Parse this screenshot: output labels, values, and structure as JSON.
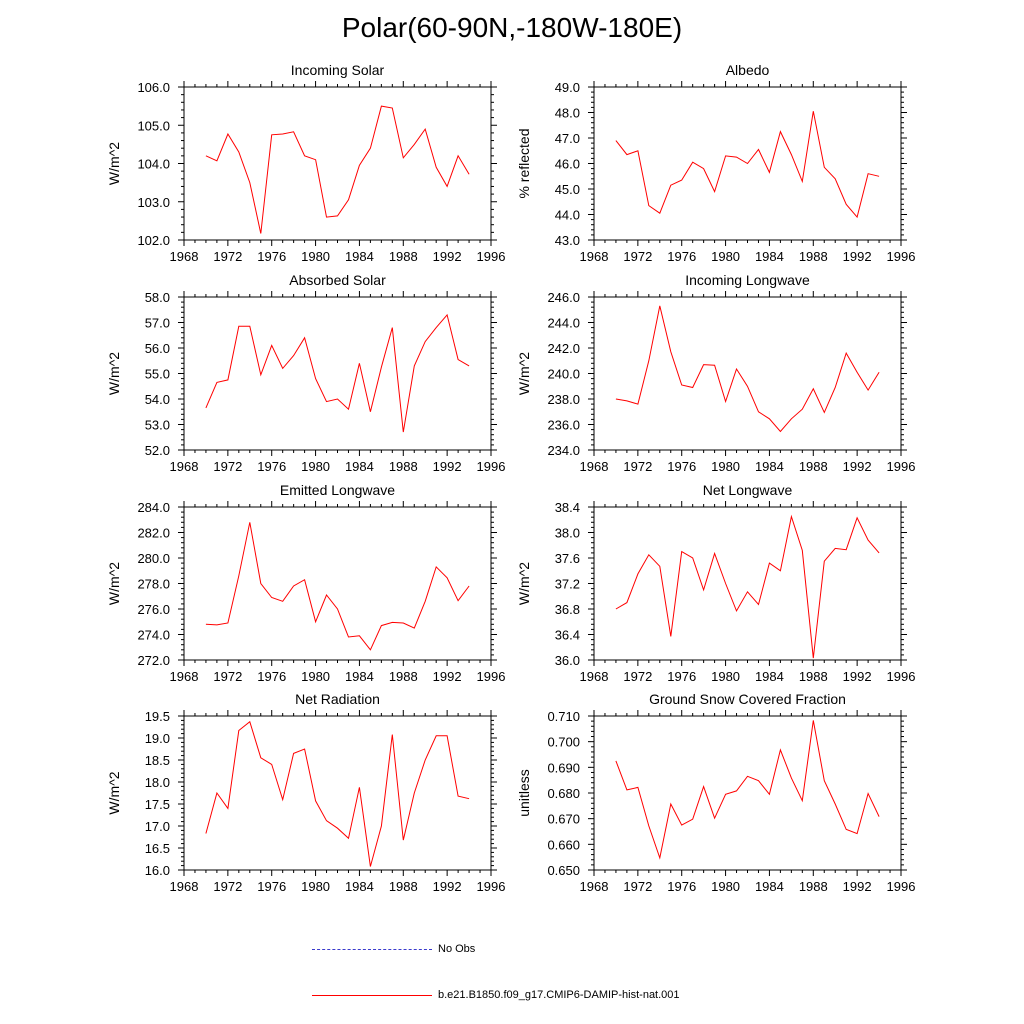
{
  "title": "Polar(60-90N,-180W-180E)",
  "legend": [
    {
      "label": "No Obs",
      "color": "#3a3acc",
      "style": "dashed"
    },
    {
      "label": "b.e21.B1850.f09_g17.CMIP6-DAMIP-hist-nat.001",
      "color": "#ff0000",
      "style": "solid"
    }
  ],
  "chart_data": [
    {
      "type": "line",
      "title": "Incoming Solar",
      "ylabel": "W/m^2",
      "xlim": [
        1968,
        1996
      ],
      "xticks": [
        1968,
        1972,
        1976,
        1980,
        1984,
        1988,
        1992,
        1996
      ],
      "ylim": [
        102.0,
        106.0
      ],
      "yticks": [
        "102.0",
        "103.0",
        "104.0",
        "105.0",
        "106.0"
      ],
      "series": [
        {
          "color": "#ff0000",
          "x": [
            1970,
            1971,
            1972,
            1973,
            1974,
            1975,
            1976,
            1977,
            1978,
            1979,
            1980,
            1981,
            1982,
            1983,
            1984,
            1985,
            1986,
            1987,
            1988,
            1989,
            1990,
            1991,
            1992,
            1993,
            1994
          ],
          "values": [
            104.2,
            104.07,
            104.77,
            104.3,
            103.5,
            102.17,
            104.75,
            104.77,
            104.83,
            104.2,
            104.1,
            102.6,
            102.63,
            103.05,
            103.95,
            104.4,
            105.5,
            105.45,
            104.15,
            104.5,
            104.9,
            103.9,
            103.4,
            104.2,
            103.72
          ]
        }
      ]
    },
    {
      "type": "line",
      "title": "Albedo",
      "ylabel": "% reflected",
      "xlim": [
        1968,
        1996
      ],
      "xticks": [
        1968,
        1972,
        1976,
        1980,
        1984,
        1988,
        1992,
        1996
      ],
      "ylim": [
        43.0,
        49.0
      ],
      "yticks": [
        "43.0",
        "44.0",
        "45.0",
        "46.0",
        "47.0",
        "48.0",
        "49.0"
      ],
      "series": [
        {
          "color": "#ff0000",
          "x": [
            1970,
            1971,
            1972,
            1973,
            1974,
            1975,
            1976,
            1977,
            1978,
            1979,
            1980,
            1981,
            1982,
            1983,
            1984,
            1985,
            1986,
            1987,
            1988,
            1989,
            1990,
            1991,
            1992,
            1993,
            1994
          ],
          "values": [
            46.9,
            46.35,
            46.5,
            44.35,
            44.05,
            45.15,
            45.35,
            46.05,
            45.8,
            44.9,
            46.3,
            46.25,
            46.0,
            46.55,
            45.65,
            47.25,
            46.35,
            45.3,
            48.05,
            45.85,
            45.4,
            44.4,
            43.9,
            45.6,
            45.5
          ]
        }
      ]
    },
    {
      "type": "line",
      "title": "Absorbed Solar",
      "ylabel": "W/m^2",
      "xlim": [
        1968,
        1996
      ],
      "xticks": [
        1968,
        1972,
        1976,
        1980,
        1984,
        1988,
        1992,
        1996
      ],
      "ylim": [
        52.0,
        58.0
      ],
      "yticks": [
        "52.0",
        "53.0",
        "54.0",
        "55.0",
        "56.0",
        "57.0",
        "58.0"
      ],
      "series": [
        {
          "color": "#ff0000",
          "x": [
            1970,
            1971,
            1972,
            1973,
            1974,
            1975,
            1976,
            1977,
            1978,
            1979,
            1980,
            1981,
            1982,
            1983,
            1984,
            1985,
            1986,
            1987,
            1988,
            1989,
            1990,
            1991,
            1992,
            1993,
            1994
          ],
          "values": [
            53.65,
            54.65,
            54.75,
            56.85,
            56.85,
            54.95,
            56.1,
            55.2,
            55.7,
            56.4,
            54.8,
            53.9,
            54.0,
            53.6,
            55.4,
            53.5,
            55.25,
            56.8,
            52.7,
            55.3,
            56.25,
            56.8,
            57.3,
            55.55,
            55.3
          ]
        }
      ]
    },
    {
      "type": "line",
      "title": "Incoming Longwave",
      "ylabel": "W/m^2",
      "xlim": [
        1968,
        1996
      ],
      "xticks": [
        1968,
        1972,
        1976,
        1980,
        1984,
        1988,
        1992,
        1996
      ],
      "ylim": [
        234.0,
        246.0
      ],
      "yticks": [
        "234.0",
        "236.0",
        "238.0",
        "240.0",
        "242.0",
        "244.0",
        "246.0"
      ],
      "series": [
        {
          "color": "#ff0000",
          "x": [
            1970,
            1971,
            1972,
            1973,
            1974,
            1975,
            1976,
            1977,
            1978,
            1979,
            1980,
            1981,
            1982,
            1983,
            1984,
            1985,
            1986,
            1987,
            1988,
            1989,
            1990,
            1991,
            1992,
            1993,
            1994
          ],
          "values": [
            238.0,
            237.85,
            237.6,
            241.0,
            245.3,
            241.7,
            239.1,
            238.9,
            240.7,
            240.65,
            237.8,
            240.35,
            239.0,
            237.0,
            236.45,
            235.45,
            236.45,
            237.2,
            238.8,
            236.95,
            238.9,
            241.6,
            240.1,
            238.7,
            240.1
          ]
        }
      ]
    },
    {
      "type": "line",
      "title": "Emitted Longwave",
      "ylabel": "W/m^2",
      "xlim": [
        1968,
        1996
      ],
      "xticks": [
        1968,
        1972,
        1976,
        1980,
        1984,
        1988,
        1992,
        1996
      ],
      "ylim": [
        272.0,
        284.0
      ],
      "yticks": [
        "272.0",
        "274.0",
        "276.0",
        "278.0",
        "280.0",
        "282.0",
        "284.0"
      ],
      "series": [
        {
          "color": "#ff0000",
          "x": [
            1970,
            1971,
            1972,
            1973,
            1974,
            1975,
            1976,
            1977,
            1978,
            1979,
            1980,
            1981,
            1982,
            1983,
            1984,
            1985,
            1986,
            1987,
            1988,
            1989,
            1990,
            1991,
            1992,
            1993,
            1994
          ],
          "values": [
            274.8,
            274.75,
            274.9,
            278.6,
            282.8,
            278.0,
            276.9,
            276.6,
            277.8,
            278.3,
            275.0,
            277.1,
            276.0,
            273.8,
            273.9,
            272.8,
            274.7,
            274.95,
            274.9,
            274.5,
            276.6,
            279.3,
            278.45,
            276.65,
            277.8
          ]
        }
      ]
    },
    {
      "type": "line",
      "title": "Net Longwave",
      "ylabel": "W/m^2",
      "xlim": [
        1968,
        1996
      ],
      "xticks": [
        1968,
        1972,
        1976,
        1980,
        1984,
        1988,
        1992,
        1996
      ],
      "ylim": [
        36.0,
        38.4
      ],
      "yticks": [
        "36.0",
        "36.4",
        "36.8",
        "37.2",
        "37.6",
        "38.0",
        "38.4"
      ],
      "series": [
        {
          "color": "#ff0000",
          "x": [
            1970,
            1971,
            1972,
            1973,
            1974,
            1975,
            1976,
            1977,
            1978,
            1979,
            1980,
            1981,
            1982,
            1983,
            1984,
            1985,
            1986,
            1987,
            1988,
            1989,
            1990,
            1991,
            1992,
            1993,
            1994
          ],
          "values": [
            36.8,
            36.9,
            37.35,
            37.65,
            37.47,
            36.37,
            37.7,
            37.6,
            37.1,
            37.67,
            37.2,
            36.77,
            37.07,
            36.87,
            37.52,
            37.4,
            38.25,
            37.72,
            36.03,
            37.55,
            37.75,
            37.73,
            38.23,
            37.88,
            37.68
          ]
        }
      ]
    },
    {
      "type": "line",
      "title": "Net Radiation",
      "ylabel": "W/m^2",
      "xlim": [
        1968,
        1996
      ],
      "xticks": [
        1968,
        1972,
        1976,
        1980,
        1984,
        1988,
        1992,
        1996
      ],
      "ylim": [
        16.0,
        19.5
      ],
      "yticks": [
        "16.0",
        "16.5",
        "17.0",
        "17.5",
        "18.0",
        "18.5",
        "19.0",
        "19.5"
      ],
      "series": [
        {
          "color": "#ff0000",
          "x": [
            1970,
            1971,
            1972,
            1973,
            1974,
            1975,
            1976,
            1977,
            1978,
            1979,
            1980,
            1981,
            1982,
            1983,
            1984,
            1985,
            1986,
            1987,
            1988,
            1989,
            1990,
            1991,
            1992,
            1993,
            1994
          ],
          "values": [
            16.83,
            17.75,
            17.4,
            19.17,
            19.37,
            18.55,
            18.4,
            17.6,
            18.65,
            18.75,
            17.57,
            17.12,
            16.95,
            16.72,
            17.88,
            16.08,
            17.0,
            19.08,
            16.68,
            17.75,
            18.5,
            19.05,
            19.05,
            17.68,
            17.62
          ]
        }
      ]
    },
    {
      "type": "line",
      "title": "Ground Snow Covered Fraction",
      "ylabel": "unitless",
      "xlim": [
        1968,
        1996
      ],
      "xticks": [
        1968,
        1972,
        1976,
        1980,
        1984,
        1988,
        1992,
        1996
      ],
      "ylim": [
        0.65,
        0.71
      ],
      "yticks": [
        "0.650",
        "0.660",
        "0.670",
        "0.680",
        "0.690",
        "0.700",
        "0.710"
      ],
      "series": [
        {
          "color": "#ff0000",
          "x": [
            1970,
            1971,
            1972,
            1973,
            1974,
            1975,
            1976,
            1977,
            1978,
            1979,
            1980,
            1981,
            1982,
            1983,
            1984,
            1985,
            1986,
            1987,
            1988,
            1989,
            1990,
            1991,
            1992,
            1993,
            1994
          ],
          "values": [
            0.6925,
            0.6812,
            0.6822,
            0.6672,
            0.6547,
            0.6757,
            0.6675,
            0.6698,
            0.6825,
            0.6702,
            0.6795,
            0.6808,
            0.6865,
            0.6848,
            0.6795,
            0.6968,
            0.6858,
            0.677,
            0.7083,
            0.6848,
            0.6757,
            0.6658,
            0.6642,
            0.6798,
            0.6708
          ]
        }
      ]
    }
  ]
}
